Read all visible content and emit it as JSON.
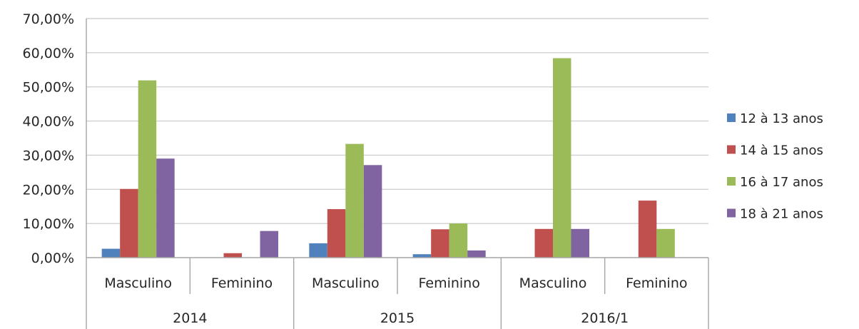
{
  "chart_data": {
    "type": "bar",
    "title": "",
    "xlabel": "",
    "ylabel": "",
    "ylim": [
      0,
      70
    ],
    "y_ticks": [
      "0,00%",
      "10,00%",
      "20,00%",
      "30,00%",
      "40,00%",
      "50,00%",
      "60,00%",
      "70,00%"
    ],
    "y_tick_values": [
      0,
      10,
      20,
      30,
      40,
      50,
      60,
      70
    ],
    "grid": true,
    "legend_position": "right",
    "groups": [
      {
        "label": "2014",
        "categories": [
          "Masculino",
          "Feminino"
        ]
      },
      {
        "label": "2015",
        "categories": [
          "Masculino",
          "Feminino"
        ]
      },
      {
        "label": "2016/1",
        "categories": [
          "Masculino",
          "Feminino"
        ]
      }
    ],
    "categories": [
      "2014 Masculino",
      "2014 Feminino",
      "2015 Masculino",
      "2015 Feminino",
      "2016/1 Masculino",
      "2016/1 Feminino"
    ],
    "series": [
      {
        "name": "12 à 13 anos",
        "color": "#4f81bd",
        "values": [
          2.6,
          0,
          4.2,
          1.0,
          0,
          0
        ]
      },
      {
        "name": "14 à 15 anos",
        "color": "#c0504d",
        "values": [
          20.1,
          1.3,
          14.2,
          8.3,
          8.4,
          16.7
        ]
      },
      {
        "name": "16 à 17 anos",
        "color": "#9bbb59",
        "values": [
          51.9,
          0,
          33.3,
          10.0,
          58.4,
          8.4
        ]
      },
      {
        "name": "18 à 21 anos",
        "color": "#8064a2",
        "values": [
          29.0,
          7.8,
          27.1,
          2.1,
          8.4,
          0
        ]
      }
    ]
  }
}
